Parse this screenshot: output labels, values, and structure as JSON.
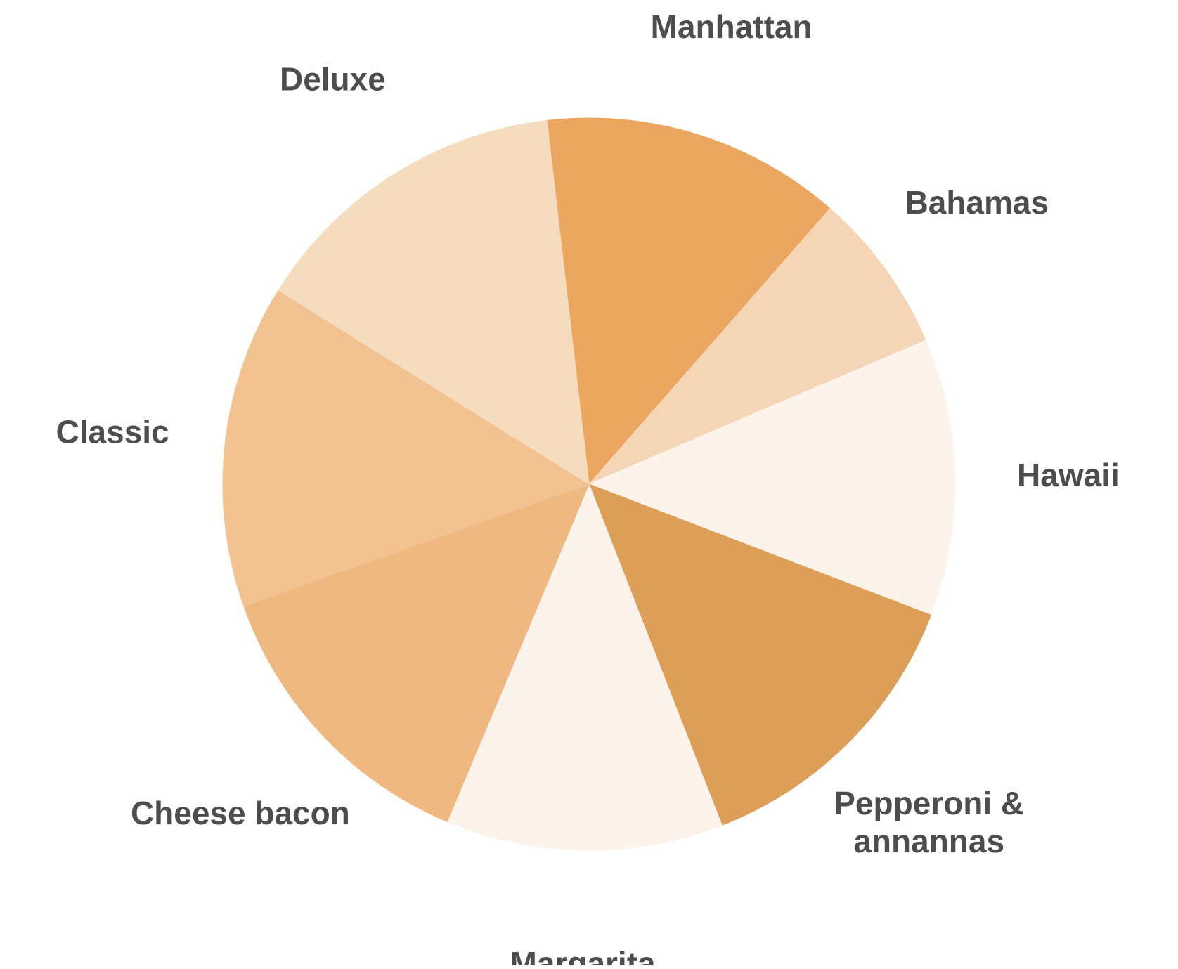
{
  "chart_data": {
    "type": "pie",
    "title": "",
    "start_angle_deg": -6.6,
    "direction": "clockwise",
    "legend": "none",
    "slices": [
      {
        "label": [
          "Manhattan"
        ],
        "value": 13.0,
        "color": "#eba75f"
      },
      {
        "label": [
          "Bahamas"
        ],
        "value": 7.0,
        "color": "#f4d6b6"
      },
      {
        "label": [
          "Hawaii"
        ],
        "value": 12.0,
        "color": "#fcf3eb"
      },
      {
        "label": [
          "Pepperoni &",
          "annannas"
        ],
        "value": 13.0,
        "color": "#dd9e58"
      },
      {
        "label": [
          "Margarita"
        ],
        "value": 12.0,
        "color": "#fcf3eb"
      },
      {
        "label": [
          "Cheese bacon"
        ],
        "value": 13.0,
        "color": "#efb880"
      },
      {
        "label": [
          "Classic"
        ],
        "value": 14.0,
        "color": "#f2c290"
      },
      {
        "label": [
          "Deluxe"
        ],
        "value": 14.0,
        "color": "#f6dcbf"
      }
    ]
  }
}
